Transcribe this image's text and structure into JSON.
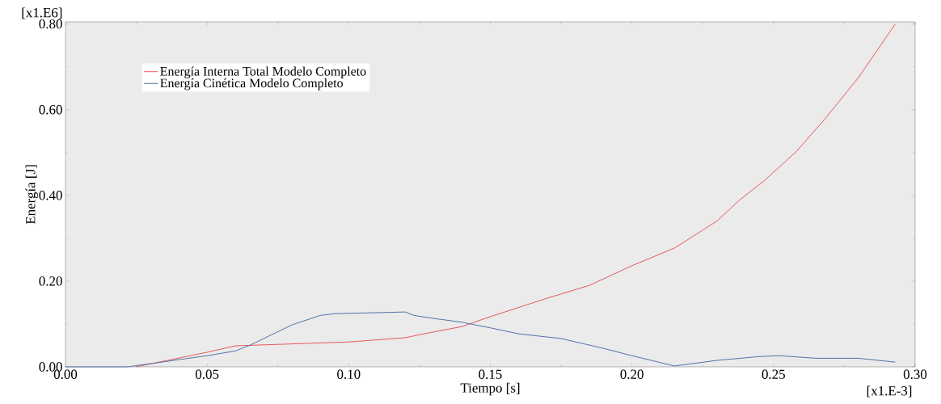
{
  "chart_data": {
    "type": "line",
    "xlabel": "Tiempo [s]",
    "ylabel": "Energía [J]",
    "annotations": [
      "[x1.E6]",
      "[x1.E-3]"
    ],
    "xlim": [
      0,
      0.3
    ],
    "ylim": [
      0,
      0.805
    ],
    "xticks": [
      {
        "value": 0,
        "label": "0.00"
      },
      {
        "value": 0.05,
        "label": "0.05"
      },
      {
        "value": 0.1,
        "label": "0.10"
      },
      {
        "value": 0.15,
        "label": "0.15"
      },
      {
        "value": 0.2,
        "label": "0.20"
      },
      {
        "value": 0.25,
        "label": "0.25"
      },
      {
        "value": 0.3,
        "label": "0.30"
      }
    ],
    "yticks": [
      {
        "value": 0,
        "label": "0.00"
      },
      {
        "value": 0.2,
        "label": "0.20"
      },
      {
        "value": 0.4,
        "label": "0.40"
      },
      {
        "value": 0.6,
        "label": "0.60"
      },
      {
        "value": 0.8,
        "label": "0.80"
      }
    ],
    "grid": false,
    "legend": "top left",
    "marker": "none",
    "line_style": "solid",
    "series": [
      {
        "name": "Energía Interna Total Modelo Completo",
        "color": "#e8585a",
        "x": [
          0.025,
          0.05,
          0.06,
          0.1,
          0.12,
          0.125,
          0.14,
          0.15,
          0.17,
          0.185,
          0.2,
          0.215,
          0.23,
          0.238,
          0.247,
          0.258,
          0.268,
          0.28,
          0.293
        ],
        "values": [
          0,
          0.034,
          0.049,
          0.058,
          0.068,
          0.075,
          0.094,
          0.117,
          0.16,
          0.19,
          0.236,
          0.277,
          0.34,
          0.389,
          0.436,
          0.502,
          0.577,
          0.675,
          0.8
        ]
      },
      {
        "name": "Energía Cinética Modelo Completo",
        "color": "#4f72a8",
        "x": [
          0,
          0.022,
          0.05,
          0.06,
          0.065,
          0.08,
          0.09,
          0.095,
          0.12,
          0.123,
          0.13,
          0.14,
          0.15,
          0.16,
          0.175,
          0.19,
          0.2,
          0.215,
          0.23,
          0.245,
          0.252,
          0.265,
          0.28,
          0.293
        ],
        "values": [
          0,
          0,
          0.026,
          0.037,
          0.05,
          0.098,
          0.12,
          0.124,
          0.128,
          0.12,
          0.113,
          0.104,
          0.091,
          0.077,
          0.066,
          0.043,
          0.026,
          0.002,
          0.015,
          0.024,
          0.026,
          0.02,
          0.02,
          0.011
        ]
      }
    ]
  }
}
